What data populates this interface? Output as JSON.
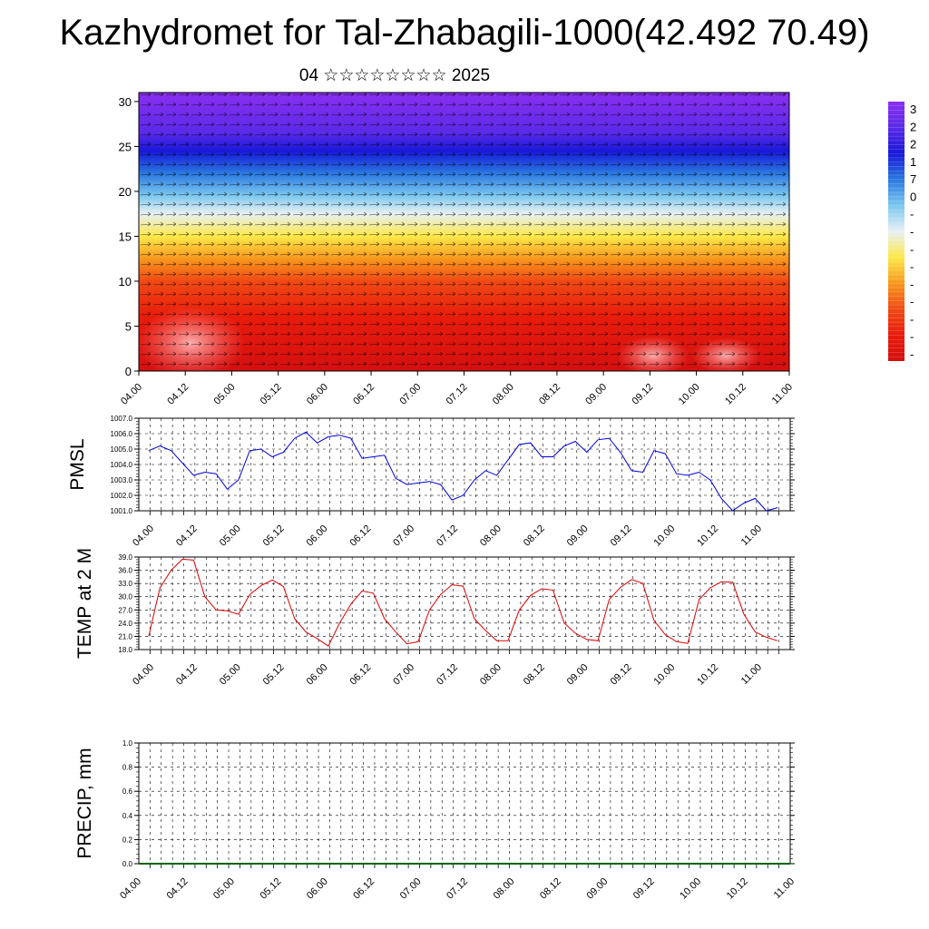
{
  "page": {
    "title": "Kazhydromet for Tal-Zhabagili-1000(42.492 70.49)",
    "subtitle": "04 ☆☆☆☆☆☆☆☆ 2025"
  },
  "chart_data": [
    {
      "type": "heatmap",
      "title": "",
      "y_ticks": [
        "0",
        "5",
        "10",
        "15",
        "20",
        "25",
        "30"
      ],
      "ylim": [
        0,
        31
      ],
      "x_ticks": [
        "04.00",
        "04.12",
        "05.00",
        "05.12",
        "06.00",
        "06.12",
        "07.00",
        "07.12",
        "08.00",
        "08.12",
        "09.00",
        "09.12",
        "10.00",
        "10.12",
        "11.00"
      ],
      "bands": [
        {
          "y": 0,
          "color": "#d41010"
        },
        {
          "y": 6,
          "color": "#e81c0c"
        },
        {
          "y": 10,
          "color": "#f04a14"
        },
        {
          "y": 12.5,
          "color": "#f7981e"
        },
        {
          "y": 15,
          "color": "#fde84a"
        },
        {
          "y": 17.5,
          "color": "#e8f0f4"
        },
        {
          "y": 19.5,
          "color": "#7cc8ef"
        },
        {
          "y": 22,
          "color": "#2a78e0"
        },
        {
          "y": 24.5,
          "color": "#1818d8"
        },
        {
          "y": 26.5,
          "color": "#5a2ae8"
        },
        {
          "y": 31,
          "color": "#8a2ff0"
        }
      ],
      "colorbar_labels": [
        "3",
        "2",
        "2",
        "1",
        "7",
        "0",
        "-",
        "-",
        "-",
        "-",
        "-",
        "-",
        "-",
        "-",
        "-"
      ],
      "wind_arrows": true
    },
    {
      "type": "line",
      "ylabel": "PMSL",
      "ylim": [
        1001.0,
        1007.0
      ],
      "y_ticks": [
        "1001.0",
        "1002.0",
        "1003.0",
        "1004.0",
        "1005.0",
        "1006.0",
        "1007.0"
      ],
      "x_ticks": [
        "04.00",
        "04.12",
        "05.00",
        "05.12",
        "06.00",
        "06.12",
        "07.00",
        "07.12",
        "08.00",
        "08.12",
        "09.00",
        "09.12",
        "10.00",
        "10.12",
        "11.00"
      ],
      "color": "#0000dd",
      "series": [
        {
          "values": [
            1004.9,
            1005.2,
            1004.9,
            1004.1,
            1003.3,
            1003.5,
            1003.4,
            1002.4,
            1003.0,
            1004.9,
            1005.0,
            1004.5,
            1004.8,
            1005.7,
            1006.1,
            1005.4,
            1005.8,
            1005.9,
            1005.7,
            1004.4,
            1004.5,
            1004.6,
            1003.1,
            1002.7,
            1002.8,
            1002.9,
            1002.7,
            1001.7,
            1002.0,
            1003.0,
            1003.6,
            1003.3,
            1004.3,
            1005.3,
            1005.4,
            1004.5,
            1004.5,
            1005.2,
            1005.5,
            1004.8,
            1005.6,
            1005.7,
            1004.8,
            1003.6,
            1003.5,
            1004.9,
            1004.7,
            1003.4,
            1003.3,
            1003.5,
            1003.0,
            1001.8,
            1001.0,
            1001.5,
            1001.8,
            1001.0,
            1001.2
          ]
        }
      ]
    },
    {
      "type": "line",
      "ylabel": "TEMP at 2 M",
      "ylim": [
        18.0,
        39.0
      ],
      "y_ticks": [
        "18.0",
        "21.0",
        "24.0",
        "27.0",
        "30.0",
        "33.0",
        "36.0",
        "39.0"
      ],
      "x_ticks": [
        "04.00",
        "04.12",
        "05.00",
        "05.12",
        "06.00",
        "06.12",
        "07.00",
        "07.12",
        "08.00",
        "08.12",
        "09.00",
        "09.12",
        "10.00",
        "10.12",
        "11.00"
      ],
      "color": "#dd0000",
      "series": [
        {
          "values": [
            21.0,
            32.0,
            36.0,
            38.5,
            38.3,
            30.0,
            27.0,
            26.8,
            26.0,
            30.5,
            32.5,
            33.8,
            32.3,
            25.0,
            22.0,
            20.5,
            18.8,
            24.0,
            28.3,
            31.3,
            30.8,
            25.0,
            22.0,
            19.3,
            19.8,
            27.0,
            30.5,
            32.7,
            32.4,
            25.0,
            22.3,
            20.0,
            20.0,
            27.0,
            30.3,
            31.8,
            31.5,
            24.0,
            21.7,
            20.3,
            20.0,
            29.3,
            32.1,
            33.9,
            33.0,
            24.6,
            21.4,
            19.8,
            19.4,
            29.3,
            32.0,
            33.4,
            33.3,
            26.0,
            22.0,
            20.8,
            20.0
          ]
        }
      ]
    },
    {
      "type": "bar",
      "ylabel": "PRECIP, mm",
      "ylim": [
        0.0,
        1.0
      ],
      "y_ticks": [
        "0.0",
        "0.2",
        "0.4",
        "0.6",
        "0.8",
        "1.0"
      ],
      "x_ticks": [
        "04.00",
        "04.12",
        "05.00",
        "05.12",
        "06.00",
        "06.12",
        "07.00",
        "07.12",
        "08.00",
        "08.12",
        "09.00",
        "09.12",
        "10.00",
        "10.12",
        "11.00"
      ],
      "color": "#006400",
      "series": [
        {
          "values": [
            0,
            0,
            0,
            0,
            0,
            0,
            0,
            0,
            0,
            0,
            0,
            0,
            0,
            0,
            0,
            0,
            0,
            0,
            0,
            0,
            0,
            0,
            0,
            0,
            0,
            0,
            0,
            0,
            0,
            0,
            0,
            0,
            0,
            0,
            0,
            0,
            0,
            0,
            0,
            0,
            0,
            0,
            0,
            0,
            0,
            0,
            0,
            0,
            0,
            0,
            0,
            0,
            0,
            0,
            0,
            0,
            0
          ]
        }
      ]
    }
  ]
}
